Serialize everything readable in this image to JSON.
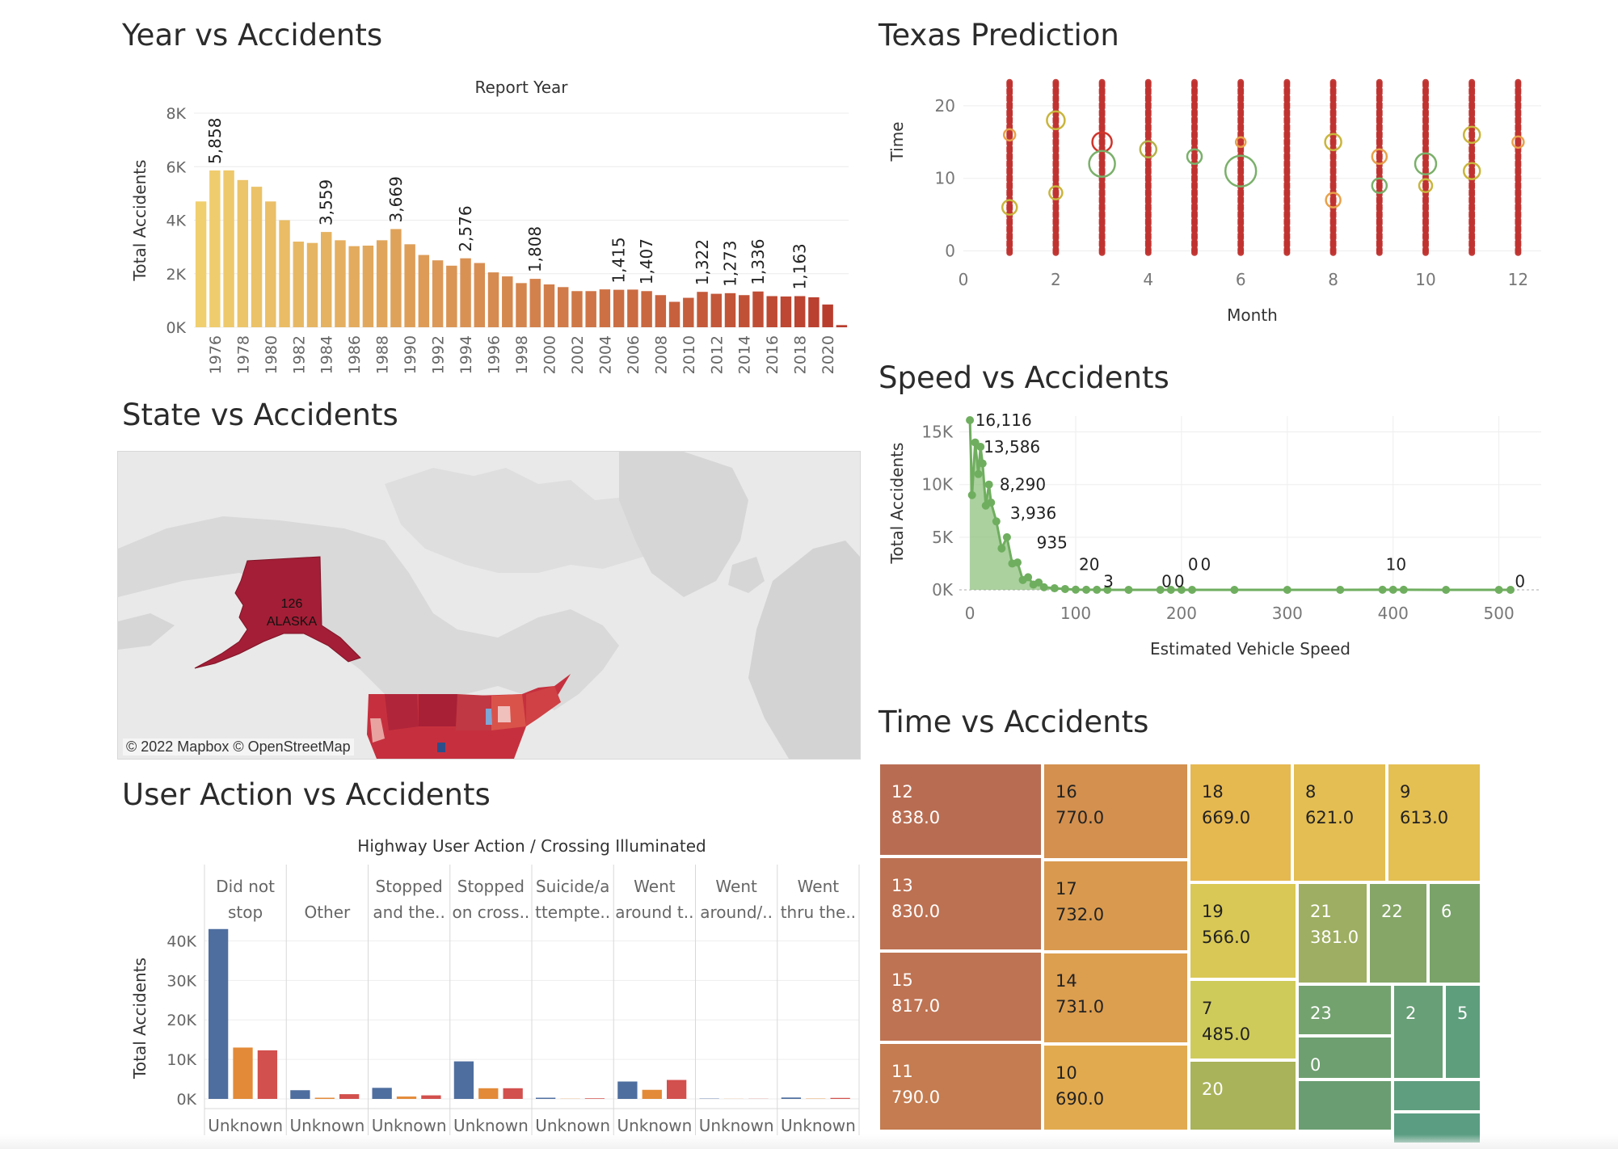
{
  "titles": {
    "year": "Year vs Accidents",
    "texas": "Texas Prediction",
    "state": "State vs Accidents",
    "speed": "Speed vs Accidents",
    "user": "User Action vs Accidents",
    "time": "Time vs Accidents"
  },
  "map": {
    "credit": "© 2022 Mapbox  © OpenStreetMap",
    "alaska_value": "126",
    "alaska_name": "ALASKA"
  },
  "chart_data": [
    {
      "id": "year",
      "type": "bar",
      "title": "Report Year",
      "xlabel": "",
      "ylabel": "Total Accidents",
      "ylim": [
        0,
        8000
      ],
      "yticks": [
        "0K",
        "2K",
        "4K",
        "6K",
        "8K"
      ],
      "categories": [
        "1975",
        "1976",
        "1977",
        "1978",
        "1979",
        "1980",
        "1981",
        "1982",
        "1983",
        "1984",
        "1985",
        "1986",
        "1987",
        "1988",
        "1989",
        "1990",
        "1991",
        "1992",
        "1993",
        "1994",
        "1995",
        "1996",
        "1997",
        "1998",
        "1999",
        "2000",
        "2001",
        "2002",
        "2003",
        "2004",
        "2005",
        "2006",
        "2007",
        "2008",
        "2009",
        "2010",
        "2011",
        "2012",
        "2013",
        "2014",
        "2015",
        "2016",
        "2017",
        "2018",
        "2019",
        "2020",
        "2021"
      ],
      "tick_labels": [
        "1976",
        "1978",
        "1980",
        "1982",
        "1984",
        "1986",
        "1988",
        "1990",
        "1992",
        "1994",
        "1996",
        "1998",
        "2000",
        "2002",
        "2004",
        "2006",
        "2008",
        "2010",
        "2012",
        "2014",
        "2016",
        "2018",
        "2020"
      ],
      "values": [
        4700,
        5858,
        5860,
        5500,
        5250,
        4700,
        4000,
        3200,
        3150,
        3559,
        3250,
        3030,
        3050,
        3250,
        3669,
        3100,
        2700,
        2500,
        2300,
        2576,
        2400,
        2050,
        1900,
        1650,
        1808,
        1600,
        1500,
        1350,
        1350,
        1415,
        1400,
        1407,
        1350,
        1200,
        950,
        1100,
        1322,
        1250,
        1273,
        1200,
        1336,
        1163,
        1150,
        1163,
        1120,
        850,
        80
      ],
      "data_labels": {
        "1976": "5,858",
        "1984": "3,559",
        "1989": "3,669",
        "1994": "2,576",
        "1999": "1,808",
        "2005": "1,415",
        "2007": "1,407",
        "2011": "1,322",
        "2013": "1,273",
        "2015": "1,336",
        "2018": "1,163"
      },
      "colors": {
        "start": "#f0cf6e",
        "end": "#b83a2c"
      }
    },
    {
      "id": "texas",
      "type": "scatter",
      "xlabel": "Month",
      "ylabel": "Time",
      "xlim": [
        0,
        12.5
      ],
      "ylim": [
        -0.5,
        24
      ],
      "xticks": [
        0,
        2,
        4,
        6,
        8,
        10,
        12
      ],
      "yticks": [
        0,
        10,
        20
      ],
      "months": [
        1,
        2,
        3,
        4,
        5,
        6,
        7,
        8,
        9,
        10,
        11,
        12
      ],
      "hours": [
        0,
        1,
        2,
        3,
        4,
        5,
        6,
        7,
        8,
        9,
        10,
        11,
        12,
        13,
        14,
        15,
        16,
        17,
        18,
        19,
        20,
        21,
        22,
        23
      ],
      "highlights": [
        {
          "month": 1,
          "hour": 6,
          "color": "#c9b53c",
          "r": 9
        },
        {
          "month": 1,
          "hour": 16,
          "color": "#e8a04a",
          "r": 7
        },
        {
          "month": 2,
          "hour": 18,
          "color": "#c9b53c",
          "r": 11
        },
        {
          "month": 2,
          "hour": 8,
          "color": "#c9b53c",
          "r": 8
        },
        {
          "month": 3,
          "hour": 15,
          "color": "#d0342c",
          "r": 12
        },
        {
          "month": 3,
          "hour": 12,
          "color": "#7ab06a",
          "r": 16
        },
        {
          "month": 4,
          "hour": 14,
          "color": "#b5b048",
          "r": 10
        },
        {
          "month": 5,
          "hour": 13,
          "color": "#7ab06a",
          "r": 9
        },
        {
          "month": 6,
          "hour": 11,
          "color": "#7ab06a",
          "r": 19
        },
        {
          "month": 6,
          "hour": 15,
          "color": "#e8a04a",
          "r": 6
        },
        {
          "month": 8,
          "hour": 15,
          "color": "#c9b53c",
          "r": 10
        },
        {
          "month": 8,
          "hour": 7,
          "color": "#e8a04a",
          "r": 9
        },
        {
          "month": 9,
          "hour": 13,
          "color": "#e8a04a",
          "r": 9
        },
        {
          "month": 9,
          "hour": 9,
          "color": "#7ab06a",
          "r": 9
        },
        {
          "month": 10,
          "hour": 12,
          "color": "#7ab06a",
          "r": 13
        },
        {
          "month": 10,
          "hour": 9,
          "color": "#c9b53c",
          "r": 8
        },
        {
          "month": 11,
          "hour": 16,
          "color": "#c9b53c",
          "r": 10
        },
        {
          "month": 11,
          "hour": 11,
          "color": "#c9b53c",
          "r": 10
        },
        {
          "month": 12,
          "hour": 15,
          "color": "#e8a04a",
          "r": 7
        }
      ]
    },
    {
      "id": "speed",
      "type": "line",
      "xlabel": "Estimated Vehicle Speed",
      "ylabel": "Total Accidents",
      "xlim": [
        -10,
        540
      ],
      "ylim": [
        0,
        16500
      ],
      "xticks": [
        0,
        100,
        200,
        300,
        400,
        500
      ],
      "ytick_values": [
        0,
        5000,
        10000,
        15000
      ],
      "ytick_labels": [
        "0K",
        "5K",
        "10K",
        "15K"
      ],
      "x": [
        0,
        2,
        5,
        8,
        10,
        12,
        15,
        18,
        20,
        25,
        30,
        35,
        40,
        45,
        50,
        55,
        60,
        65,
        70,
        80,
        90,
        100,
        110,
        120,
        130,
        150,
        180,
        190,
        200,
        210,
        250,
        300,
        350,
        390,
        400,
        410,
        450,
        500,
        511
      ],
      "y": [
        16116,
        9000,
        14000,
        11000,
        13586,
        12000,
        8000,
        10000,
        8290,
        6500,
        3936,
        5000,
        2500,
        2600,
        935,
        1200,
        500,
        700,
        250,
        150,
        80,
        20,
        10,
        5,
        3,
        3,
        0,
        0,
        0,
        0,
        0,
        0,
        0,
        10,
        10,
        5,
        0,
        0,
        0
      ],
      "data_labels": [
        {
          "x": 2,
          "y": 16116,
          "text": "16,116"
        },
        {
          "x": 10,
          "y": 13586,
          "text": "13,586"
        },
        {
          "x": 25,
          "y": 10000,
          "text": "8,290"
        },
        {
          "x": 35,
          "y": 7300,
          "text": "3,936"
        },
        {
          "x": 60,
          "y": 4500,
          "text": "935"
        },
        {
          "x": 100,
          "y": 2400,
          "text": "20"
        },
        {
          "x": 123,
          "y": 800,
          "text": "3"
        },
        {
          "x": 178,
          "y": 800,
          "text": "0"
        },
        {
          "x": 190,
          "y": 800,
          "text": "0"
        },
        {
          "x": 203,
          "y": 2400,
          "text": "0"
        },
        {
          "x": 215,
          "y": 2400,
          "text": "0"
        },
        {
          "x": 390,
          "y": 2400,
          "text": "10"
        },
        {
          "x": 512,
          "y": 800,
          "text": "0"
        }
      ]
    },
    {
      "id": "user",
      "type": "bar",
      "title": "Highway User Action  /  Crossing Illuminated",
      "ylabel": "Total Accidents",
      "ylim": [
        0,
        45000
      ],
      "ytick_values": [
        0,
        10000,
        20000,
        30000,
        40000
      ],
      "ytick_labels": [
        "0K",
        "10K",
        "20K",
        "30K",
        "40K"
      ],
      "groups": [
        {
          "label1": "Did not",
          "label2": "stop",
          "sub": "Unknown",
          "values": [
            43000,
            13000,
            12300
          ]
        },
        {
          "label1": "",
          "label2": "Other",
          "sub": "Unknown",
          "values": [
            2200,
            300,
            1200
          ]
        },
        {
          "label1": "Stopped",
          "label2": "and the..",
          "sub": "Unknown",
          "values": [
            2800,
            600,
            900
          ]
        },
        {
          "label1": "Stopped",
          "label2": "on cross..",
          "sub": "Unknown",
          "values": [
            9500,
            2700,
            2700
          ]
        },
        {
          "label1": "Suicide/a",
          "label2": "ttempte..",
          "sub": "Unknown",
          "values": [
            300,
            50,
            150
          ]
        },
        {
          "label1": "Went",
          "label2": "around t..",
          "sub": "Unknown",
          "values": [
            4400,
            2300,
            4800
          ]
        },
        {
          "label1": "Went",
          "label2": "around/..",
          "sub": "Unknown",
          "values": [
            80,
            30,
            40
          ]
        },
        {
          "label1": "Went",
          "label2": "thru the..",
          "sub": "Unknown",
          "values": [
            350,
            80,
            250
          ]
        }
      ],
      "series_colors": [
        "#4e6e9f",
        "#e38a38",
        "#d2504d"
      ]
    },
    {
      "id": "time",
      "type": "treemap",
      "tiles": [
        {
          "label": "12",
          "value": "838.0",
          "color": "#b86d53"
        },
        {
          "label": "13",
          "value": "830.0",
          "color": "#bc7152"
        },
        {
          "label": "15",
          "value": "817.0",
          "color": "#be7352"
        },
        {
          "label": "11",
          "value": "790.0",
          "color": "#c47c50"
        },
        {
          "label": "16",
          "value": "770.0",
          "color": "#d3904f"
        },
        {
          "label": "17",
          "value": "732.0",
          "color": "#d99a4f"
        },
        {
          "label": "14",
          "value": "731.0",
          "color": "#dc9e4f"
        },
        {
          "label": "10",
          "value": "690.0",
          "color": "#e2aa4f"
        },
        {
          "label": "18",
          "value": "669.0",
          "color": "#e6b850"
        },
        {
          "label": "8",
          "value": "621.0",
          "color": "#e4be52"
        },
        {
          "label": "9",
          "value": "613.0",
          "color": "#e4bf52"
        },
        {
          "label": "19",
          "value": "566.0",
          "color": "#d9c855"
        },
        {
          "label": "7",
          "value": "485.0",
          "color": "#cfcb5b"
        },
        {
          "label": "20",
          "value": "",
          "color": "#a9b35a"
        },
        {
          "label": "21",
          "value": "381.0",
          "color": "#9eae62"
        },
        {
          "label": "22",
          "value": "",
          "color": "#85a667"
        },
        {
          "label": "6",
          "value": "",
          "color": "#7aa36a"
        },
        {
          "label": "23",
          "value": "",
          "color": "#73a26f"
        },
        {
          "label": "0",
          "value": "",
          "color": "#6e9f70"
        },
        {
          "label": "2",
          "value": "",
          "color": "#689f76"
        },
        {
          "label": "5",
          "value": "",
          "color": "#5e9e7c"
        },
        {
          "label": "",
          "value": "",
          "color": "#6a9e72"
        },
        {
          "label": "",
          "value": "",
          "color": "#5f9e7f"
        },
        {
          "label": "",
          "value": "",
          "color": "#5a9d82"
        }
      ]
    }
  ]
}
